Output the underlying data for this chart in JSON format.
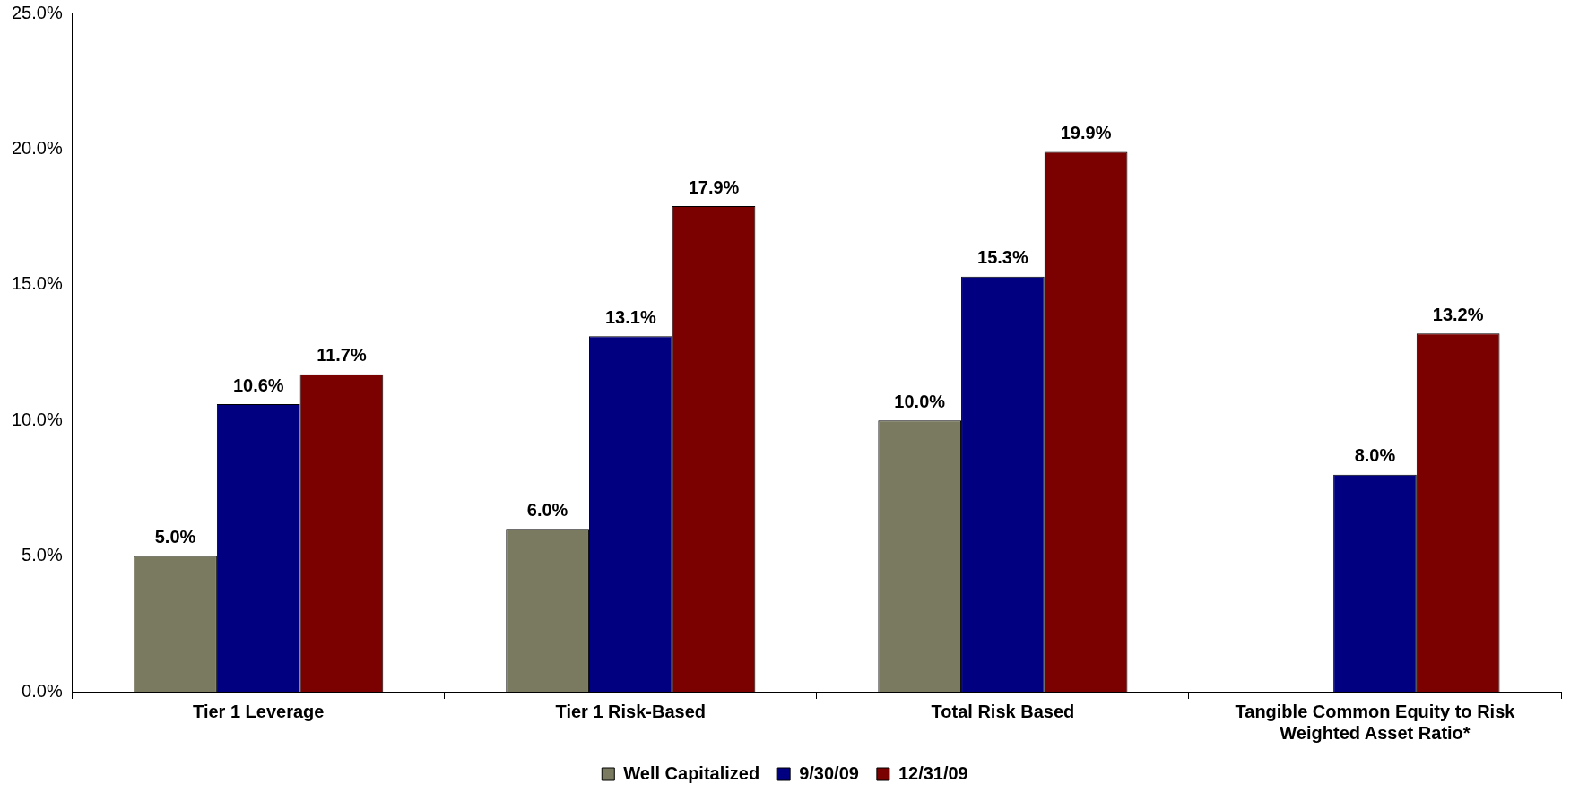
{
  "chart_data": {
    "type": "bar",
    "categories": [
      "Tier 1 Leverage",
      "Tier 1 Risk-Based",
      "Total Risk Based",
      "Tangible Common Equity to Risk Weighted Asset Ratio*"
    ],
    "series": [
      {
        "name": "Well Capitalized",
        "color": "#7a7a60",
        "values": [
          5.0,
          6.0,
          10.0,
          null
        ],
        "value_labels": [
          "5.0%",
          "6.0%",
          "10.0%",
          null
        ]
      },
      {
        "name": "9/30/09",
        "color": "#000080",
        "values": [
          10.6,
          13.1,
          15.3,
          8.0
        ],
        "value_labels": [
          "10.6%",
          "13.1%",
          "15.3%",
          "8.0%"
        ]
      },
      {
        "name": "12/31/09",
        "color": "#7b0000",
        "values": [
          11.7,
          17.9,
          19.9,
          13.2
        ],
        "value_labels": [
          "11.7%",
          "17.9%",
          "19.9%",
          "13.2%"
        ]
      }
    ],
    "ylim": [
      0,
      25
    ],
    "yticks": [
      {
        "value": 0,
        "label": "0.0%"
      },
      {
        "value": 5,
        "label": "5.0%"
      },
      {
        "value": 10,
        "label": "10.0%"
      },
      {
        "value": 15,
        "label": "15.0%"
      },
      {
        "value": 20,
        "label": "20.0%"
      },
      {
        "value": 25,
        "label": "25.0%"
      }
    ],
    "legend": "bottom"
  }
}
